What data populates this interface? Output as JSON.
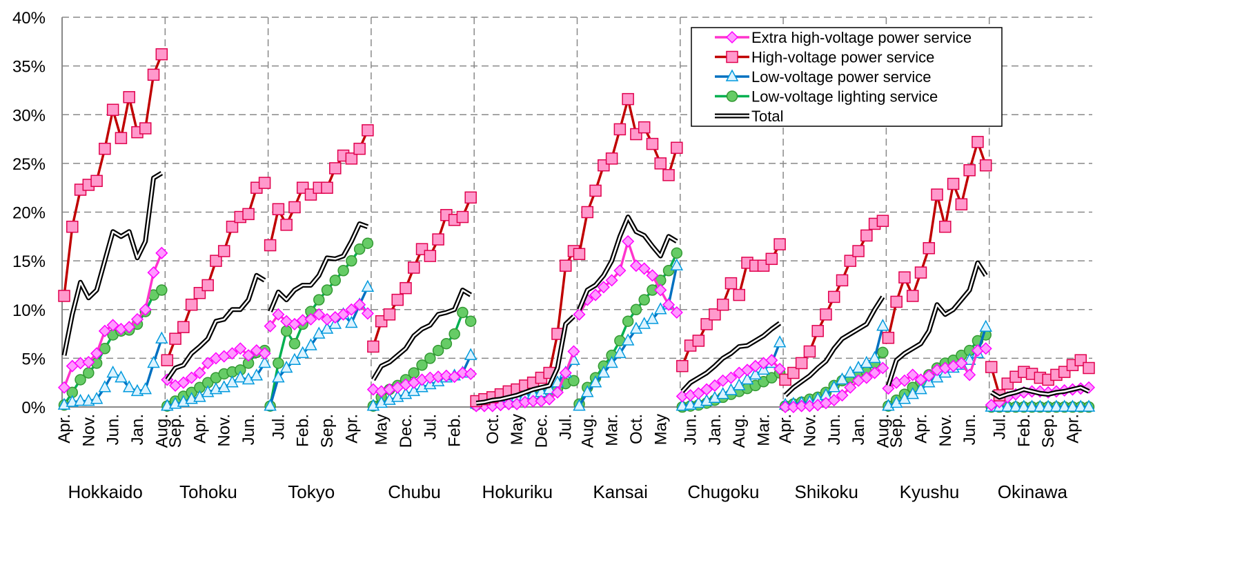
{
  "chart_data": {
    "type": "line",
    "ylim": [
      0,
      40
    ],
    "yticks": [
      {
        "value": 0,
        "label": "0%"
      },
      {
        "value": 5,
        "label": "5%"
      },
      {
        "value": 10,
        "label": "10%"
      },
      {
        "value": 15,
        "label": "15%"
      },
      {
        "value": 20,
        "label": "20%"
      },
      {
        "value": 25,
        "label": "25%"
      },
      {
        "value": 30,
        "label": "30%"
      },
      {
        "value": 35,
        "label": "35%"
      },
      {
        "value": 40,
        "label": "40%"
      }
    ],
    "grid": true,
    "legend": "upper right",
    "panels": [
      {
        "name": "Hokkaido",
        "categories": [
          "Apr.",
          null,
          null,
          "Nov.",
          null,
          null,
          "Jun.",
          null,
          null,
          "Jan.",
          null,
          null,
          "Aug."
        ]
      },
      {
        "name": "Tohoku",
        "categories": [
          null,
          "Sep.",
          null,
          null,
          "Apr.",
          null,
          null,
          "Nov.",
          null,
          null,
          "Jun.",
          null,
          null
        ]
      },
      {
        "name": "Tokyo",
        "categories": [
          null,
          "Jul.",
          null,
          null,
          "Feb.",
          null,
          null,
          "Sep.",
          null,
          null,
          "Apr.",
          null,
          null
        ]
      },
      {
        "name": "Chubu",
        "categories": [
          null,
          "May",
          null,
          null,
          "Dec.",
          null,
          null,
          "Jul.",
          null,
          null,
          "Feb.",
          null,
          null
        ]
      },
      {
        "name": "Hokuriku",
        "categories": [
          null,
          null,
          "Oct.",
          null,
          null,
          "May",
          null,
          null,
          "Dec.",
          null,
          null,
          "Jul.",
          null
        ]
      },
      {
        "name": "Kansai",
        "categories": [
          null,
          "Aug.",
          null,
          null,
          "Mar.",
          null,
          null,
          "Oct.",
          null,
          null,
          "May",
          null,
          null
        ]
      },
      {
        "name": "Chugoku",
        "categories": [
          null,
          "Jun.",
          null,
          null,
          "Jan.",
          null,
          null,
          "Aug.",
          null,
          null,
          "Mar.",
          null,
          null
        ]
      },
      {
        "name": "Shikoku",
        "categories": [
          "Apr.",
          null,
          null,
          "Nov.",
          null,
          null,
          "Jun.",
          null,
          null,
          "Jan.",
          null,
          null,
          "Aug."
        ]
      },
      {
        "name": "Kyushu",
        "categories": [
          null,
          "Sep.",
          null,
          null,
          "Apr.",
          null,
          null,
          "Nov.",
          null,
          null,
          "Jun.",
          null,
          null
        ]
      },
      {
        "name": "Okinawa",
        "categories": [
          null,
          "Jul.",
          null,
          null,
          "Feb.",
          null,
          null,
          "Sep.",
          null,
          null,
          "Apr.",
          null,
          null
        ]
      }
    ],
    "series": [
      {
        "name": "Extra high-voltage power service",
        "color": "#ff33cc",
        "marker": "diamond",
        "marker_fill": "#ff99ff",
        "marker_stroke": "#ff00ff",
        "values": [
          [
            2,
            4.2,
            4.5,
            4.6,
            5.5,
            7.8,
            8.4,
            8,
            8.2,
            9,
            10,
            13.8,
            15.8
          ],
          [
            2.8,
            2.2,
            2.5,
            3,
            3.5,
            4.5,
            5,
            5.2,
            5.5,
            6,
            5.3,
            5.8,
            5.5
          ],
          [
            8.3,
            9.5,
            8.8,
            8.5,
            8.9,
            9,
            9.5,
            9,
            9.2,
            9.5,
            10,
            10.5,
            9.6
          ],
          [
            1.8,
            1.6,
            1.8,
            2,
            2.3,
            2.5,
            2.8,
            3,
            3.1,
            3.2,
            3.1,
            3.5,
            3.4
          ],
          [
            0.1,
            0.1,
            0.1,
            0.2,
            0.3,
            0.3,
            0.5,
            0.6,
            0.6,
            0.8,
            1.5,
            3.5,
            5.7
          ],
          [
            9.5,
            11,
            11.5,
            12.3,
            13,
            14,
            17,
            14.5,
            14.2,
            13.5,
            12,
            10.5,
            9.7
          ],
          [
            1.1,
            1.2,
            1.4,
            1.8,
            2.2,
            2.7,
            3,
            3.5,
            3.8,
            4.2,
            4.5,
            4.8,
            3.9
          ],
          [
            0,
            0,
            0.1,
            0.1,
            0.2,
            0.4,
            0.7,
            1.2,
            2,
            2.7,
            3,
            3.5,
            4
          ],
          [
            1.9,
            2.5,
            2.7,
            3.3,
            2.8,
            3.2,
            3.8,
            4,
            4.2,
            4.5,
            3.3,
            5.8,
            6
          ],
          [
            0.2,
            0.5,
            1,
            1.3,
            1.5,
            1.6,
            1.6,
            1.5,
            1.6,
            1.7,
            1.8,
            1.9,
            2
          ]
        ]
      },
      {
        "name": "High-voltage power service",
        "color": "#c00000",
        "marker": "square",
        "marker_fill": "#ff99cc",
        "marker_stroke": "#e0004d",
        "values": [
          [
            11.4,
            18.5,
            22.3,
            22.8,
            23.2,
            26.5,
            30.5,
            27.6,
            31.8,
            28.2,
            28.6,
            34.1,
            36.2
          ],
          [
            4.8,
            7,
            8.2,
            10.5,
            11.7,
            12.5,
            15,
            16,
            18.5,
            19.5,
            19.8,
            22.5,
            23
          ],
          [
            16.6,
            20.3,
            18.7,
            20.5,
            22.5,
            21.8,
            22.5,
            22.5,
            24.5,
            25.8,
            25.5,
            26.5,
            28.4
          ],
          [
            6.2,
            8.8,
            9.5,
            11,
            12.2,
            14.3,
            16.2,
            15.5,
            17.2,
            19.7,
            19.2,
            19.5,
            21.5
          ],
          [
            0.6,
            0.8,
            1,
            1.3,
            1.6,
            1.8,
            2.2,
            2.5,
            3,
            3.5,
            7.5,
            14.5,
            16
          ],
          [
            15.7,
            20,
            22.2,
            24.8,
            25.5,
            28.5,
            31.6,
            28,
            28.7,
            27,
            25,
            23.8,
            26.6
          ],
          [
            4.2,
            6.3,
            6.8,
            8.5,
            9.5,
            10.5,
            12.7,
            11.5,
            14.8,
            14.5,
            14.5,
            15.2,
            16.7
          ],
          [
            2.8,
            3.5,
            4.5,
            5.7,
            7.8,
            9.5,
            11.3,
            13,
            15,
            16,
            17.6,
            18.8,
            19.1
          ],
          [
            7.1,
            10.8,
            13.3,
            11.4,
            13.8,
            16.3,
            21.8,
            18.5,
            22.9,
            20.8,
            24.3,
            27.2,
            24.8
          ],
          [
            4.1,
            1.2,
            2.4,
            3.1,
            3.6,
            3.4,
            3,
            2.8,
            3.3,
            3.6,
            4.3,
            4.8,
            4
          ]
        ]
      },
      {
        "name": "Low-voltage power service",
        "color": "#0070c0",
        "marker": "triangle",
        "marker_fill": "#ddf3ff",
        "marker_stroke": "#0099dd",
        "values": [
          [
            0.2,
            0.5,
            0.6,
            0.6,
            0.8,
            2,
            3.5,
            3,
            2,
            1.6,
            1.8,
            4.5,
            7
          ],
          [
            0.1,
            0.3,
            0.5,
            0.8,
            1,
            1.5,
            1.8,
            2,
            2.5,
            3,
            2.8,
            3.2,
            4.5
          ],
          [
            0.1,
            3,
            4,
            4.8,
            5.5,
            6.3,
            7.5,
            8,
            8.5,
            9.5,
            8.6,
            10.5,
            12.3
          ],
          [
            0.1,
            0.4,
            0.7,
            1,
            1.3,
            1.6,
            2,
            2.3,
            2.6,
            3,
            3.2,
            3.5,
            5.3
          ],
          [
            0.3,
            0.4,
            0.5,
            0.6,
            0.8,
            1,
            1.1,
            1.3,
            1.5,
            1.8,
            2.5,
            3.5,
            4.8
          ],
          [
            0.1,
            1.5,
            2.5,
            3.5,
            4.5,
            5.5,
            6.8,
            8,
            8.5,
            9,
            10,
            10.5,
            14.5
          ],
          [
            0.1,
            0.2,
            0.4,
            0.6,
            0.9,
            1.3,
            1.7,
            2.2,
            2.8,
            3.3,
            3.8,
            4.5,
            6.6
          ],
          [
            0.2,
            0.3,
            0.4,
            0.5,
            0.8,
            1.2,
            2,
            2.8,
            3.5,
            4,
            4.5,
            5,
            8.3
          ],
          [
            0.1,
            0.4,
            0.8,
            1.3,
            1.8,
            2.5,
            3,
            3.5,
            4,
            4.3,
            4.8,
            5.5,
            8.2
          ],
          [
            0,
            0,
            0,
            0,
            0,
            0,
            0,
            0,
            0,
            0,
            0,
            0,
            0
          ]
        ]
      },
      {
        "name": "Low-voltage lighting service",
        "color": "#00b050",
        "marker": "circle",
        "marker_fill": "#66cc66",
        "marker_stroke": "#339933",
        "values": [
          [
            0.2,
            1.5,
            2.8,
            3.5,
            4.5,
            6,
            7.4,
            7.8,
            7.9,
            8.5,
            9.8,
            11.5,
            12
          ],
          [
            0.1,
            0.6,
            1.1,
            1.5,
            2,
            2.5,
            3,
            3.4,
            3.6,
            3.8,
            4.5,
            5.6,
            5.8
          ],
          [
            0.1,
            4.5,
            7.8,
            6.5,
            8.5,
            9.8,
            11,
            12,
            13,
            14,
            15,
            16.2,
            16.8
          ],
          [
            0.1,
            1,
            1.8,
            2.2,
            2.8,
            3.5,
            4.3,
            5,
            5.8,
            6.5,
            7.5,
            9.7,
            8.8
          ],
          [
            0.2,
            0.3,
            0.4,
            0.5,
            0.7,
            0.8,
            1,
            1.2,
            1.4,
            1.6,
            1.9,
            2.4,
            2.7
          ],
          [
            0.3,
            2,
            3,
            4.2,
            5.3,
            6.8,
            8.8,
            10,
            11,
            12,
            13,
            14,
            15.8
          ],
          [
            0,
            0.1,
            0.2,
            0.4,
            0.7,
            1,
            1.3,
            1.6,
            1.9,
            2.2,
            2.6,
            3,
            3.5
          ],
          [
            0.1,
            0.3,
            0.5,
            0.8,
            1,
            1.5,
            2.2,
            2.7,
            3,
            3.2,
            3.6,
            4.5,
            5.6
          ],
          [
            0.1,
            0.7,
            1.3,
            2,
            2.6,
            3.3,
            4,
            4.5,
            4.8,
            5.3,
            5.8,
            6.8,
            7.4
          ],
          [
            0,
            0,
            0,
            0,
            0,
            0,
            0,
            0,
            0,
            0,
            0,
            0,
            0
          ]
        ]
      },
      {
        "name": "Total",
        "color": "#000000",
        "marker": "none",
        "values": [
          [
            5.3,
            9.5,
            12.8,
            11.2,
            12,
            15,
            18,
            17.5,
            18,
            15.3,
            17,
            23.5,
            24
          ],
          [
            2.8,
            4,
            4.3,
            5.5,
            6.2,
            7,
            8.8,
            9,
            10,
            10,
            11,
            13.5,
            13
          ],
          [
            9.8,
            11.8,
            11,
            12,
            12.5,
            12.5,
            13.5,
            15.3,
            15.2,
            15.5,
            17,
            18.8,
            18.5
          ],
          [
            2.8,
            4.2,
            4.6,
            5.3,
            6,
            7.3,
            8,
            8.4,
            9.5,
            9.7,
            10,
            12,
            11.5
          ],
          [
            0.4,
            0.5,
            0.7,
            0.8,
            1,
            1.2,
            1.5,
            1.8,
            2,
            2.2,
            4,
            8.5,
            9.3
          ],
          [
            10,
            12,
            12.5,
            13.5,
            15,
            17.5,
            19.5,
            18,
            17.6,
            16.5,
            15.5,
            17.5,
            17
          ],
          [
            1.6,
            2.5,
            3,
            3.5,
            4.2,
            5,
            5.5,
            6.2,
            6.3,
            6.8,
            7.3,
            8,
            8.6
          ],
          [
            1.2,
            2,
            2.6,
            3.2,
            4,
            4.7,
            6,
            7,
            7.5,
            8,
            8.5,
            10,
            11.3
          ],
          [
            2.2,
            4.8,
            5.5,
            6,
            6.5,
            7.8,
            10.5,
            9.5,
            10,
            11,
            12,
            14.8,
            13.5
          ],
          [
            1.5,
            1,
            1.3,
            1.5,
            1.8,
            1.6,
            1.4,
            1.3,
            1.5,
            1.6,
            1.8,
            2,
            1.6
          ]
        ]
      }
    ]
  }
}
